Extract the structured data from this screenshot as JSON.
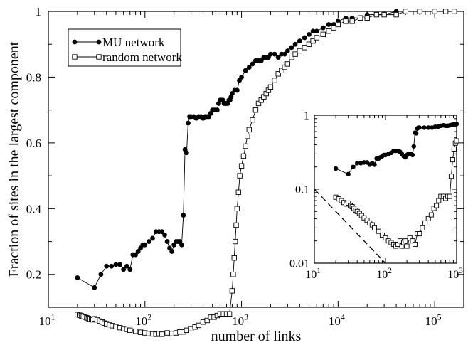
{
  "chart_data": [
    {
      "type": "scatter",
      "name_in_image": "main",
      "xlabel": "number of links",
      "ylabel": "Fraction of sites in the largest component",
      "x_scale": "log",
      "y_scale": "linear",
      "xlim": [
        10,
        200000
      ],
      "ylim": [
        0.1,
        1
      ],
      "x_ticks": [
        {
          "value": 10,
          "base": "10",
          "exp": "1"
        },
        {
          "value": 100,
          "base": "10",
          "exp": "2"
        },
        {
          "value": 1000,
          "base": "10",
          "exp": "3"
        },
        {
          "value": 10000,
          "base": "10",
          "exp": "4"
        },
        {
          "value": 100000,
          "base": "10",
          "exp": "5"
        }
      ],
      "y_ticks": [
        {
          "value": 0.2,
          "label": "0.2"
        },
        {
          "value": 0.4,
          "label": "0.4"
        },
        {
          "value": 0.6,
          "label": "0.6"
        },
        {
          "value": 0.8,
          "label": "0.8"
        },
        {
          "value": 1.0,
          "label": "1"
        }
      ],
      "legend_placement": "top-left",
      "grid": false,
      "series": [
        {
          "name": "MU network",
          "marker": "filled-circle",
          "color": "#000000",
          "x": [
            20,
            30,
            35,
            40,
            45,
            50,
            55,
            60,
            65,
            70,
            75,
            80,
            85,
            90,
            95,
            100,
            110,
            120,
            130,
            140,
            150,
            160,
            170,
            180,
            190,
            200,
            210,
            220,
            230,
            240,
            250,
            260,
            270,
            280,
            290,
            300,
            320,
            340,
            360,
            380,
            400,
            420,
            440,
            460,
            480,
            500,
            520,
            540,
            560,
            580,
            600,
            620,
            640,
            660,
            680,
            700,
            720,
            740,
            760,
            780,
            800,
            850,
            900,
            950,
            1000,
            1100,
            1200,
            1300,
            1400,
            1500,
            1600,
            1700,
            1800,
            1900,
            2000,
            2200,
            2400,
            2600,
            2800,
            3000,
            3300,
            3600,
            4000,
            4500,
            5000,
            5500,
            6000,
            7000,
            8000,
            9000,
            10000,
            12000,
            14000,
            17000,
            20000,
            25000,
            30000,
            40000,
            50000,
            70000,
            100000,
            130000,
            160000
          ],
          "y": [
            0.19,
            0.16,
            0.2,
            0.225,
            0.225,
            0.23,
            0.23,
            0.215,
            0.225,
            0.215,
            0.26,
            0.26,
            0.27,
            0.28,
            0.29,
            0.29,
            0.3,
            0.31,
            0.33,
            0.33,
            0.33,
            0.32,
            0.3,
            0.28,
            0.27,
            0.29,
            0.3,
            0.3,
            0.3,
            0.29,
            0.38,
            0.58,
            0.57,
            0.66,
            0.68,
            0.68,
            0.68,
            0.675,
            0.68,
            0.68,
            0.675,
            0.68,
            0.68,
            0.68,
            0.69,
            0.7,
            0.7,
            0.7,
            0.7,
            0.72,
            0.73,
            0.73,
            0.73,
            0.72,
            0.72,
            0.72,
            0.72,
            0.73,
            0.73,
            0.74,
            0.75,
            0.76,
            0.76,
            0.79,
            0.8,
            0.82,
            0.83,
            0.84,
            0.85,
            0.85,
            0.85,
            0.86,
            0.86,
            0.86,
            0.87,
            0.87,
            0.86,
            0.87,
            0.87,
            0.88,
            0.89,
            0.9,
            0.91,
            0.92,
            0.93,
            0.94,
            0.94,
            0.95,
            0.96,
            0.96,
            0.97,
            0.98,
            0.98,
            0.98,
            0.99,
            0.99,
            0.99,
            1.0,
            1.0,
            1.0,
            1.0,
            1.0,
            1.0
          ]
        },
        {
          "name": "random network",
          "marker": "open-square",
          "color": "#000000",
          "x": [
            20,
            21,
            22,
            23,
            24,
            25,
            26,
            27,
            28,
            29,
            30,
            32,
            34,
            36,
            38,
            40,
            43,
            46,
            50,
            55,
            60,
            65,
            70,
            80,
            90,
            100,
            110,
            120,
            130,
            140,
            150,
            170,
            190,
            210,
            230,
            250,
            270,
            300,
            330,
            360,
            400,
            440,
            480,
            520,
            560,
            600,
            650,
            700,
            750,
            800,
            820,
            840,
            860,
            880,
            900,
            930,
            960,
            1000,
            1050,
            1100,
            1150,
            1200,
            1300,
            1400,
            1500,
            1600,
            1700,
            1800,
            1900,
            2000,
            2200,
            2400,
            2600,
            2800,
            3000,
            3300,
            3600,
            4000,
            4500,
            5000,
            5500,
            6000,
            7000,
            8000,
            9000,
            10000,
            12000,
            14000,
            17000,
            20000,
            25000,
            30000,
            40000,
            50000,
            70000,
            100000,
            130000,
            160000
          ],
          "y": [
            0.078,
            0.076,
            0.074,
            0.072,
            0.07,
            0.068,
            0.066,
            0.064,
            0.063,
            0.062,
            0.065,
            0.062,
            0.058,
            0.055,
            0.052,
            0.05,
            0.047,
            0.044,
            0.041,
            0.038,
            0.035,
            0.033,
            0.03,
            0.027,
            0.024,
            0.022,
            0.02,
            0.019,
            0.018,
            0.02,
            0.018,
            0.022,
            0.02,
            0.022,
            0.025,
            0.025,
            0.03,
            0.035,
            0.04,
            0.045,
            0.055,
            0.06,
            0.07,
            0.07,
            0.075,
            0.08,
            0.08,
            0.08,
            0.08,
            0.15,
            0.2,
            0.25,
            0.3,
            0.35,
            0.4,
            0.45,
            0.5,
            0.53,
            0.56,
            0.59,
            0.62,
            0.64,
            0.67,
            0.7,
            0.72,
            0.73,
            0.74,
            0.75,
            0.76,
            0.77,
            0.79,
            0.81,
            0.82,
            0.83,
            0.84,
            0.86,
            0.87,
            0.88,
            0.89,
            0.9,
            0.91,
            0.92,
            0.93,
            0.94,
            0.95,
            0.96,
            0.97,
            0.97,
            0.98,
            0.98,
            0.99,
            0.99,
            0.99,
            1.0,
            1.0,
            1.0,
            1.0,
            1.0
          ]
        }
      ]
    },
    {
      "type": "scatter",
      "name_in_image": "inset",
      "xlabel": "",
      "ylabel": "",
      "x_scale": "log",
      "y_scale": "log",
      "xlim": [
        10,
        1000
      ],
      "ylim": [
        0.01,
        1
      ],
      "x_ticks": [
        {
          "value": 10,
          "base": "10",
          "exp": "1"
        },
        {
          "value": 100,
          "base": "10",
          "exp": "2"
        },
        {
          "value": 1000,
          "base": "10",
          "exp": "3"
        }
      ],
      "y_ticks": [
        {
          "value": 0.01,
          "label": "0.01"
        },
        {
          "value": 0.1,
          "label": "0.1"
        },
        {
          "value": 1,
          "label": "1"
        }
      ],
      "reference_line": {
        "style": "dashed",
        "x": [
          10,
          100
        ],
        "y": [
          0.1,
          0.01
        ]
      },
      "series": [
        {
          "name": "MU network",
          "marker": "filled-circle",
          "x": [
            20,
            30,
            35,
            40,
            45,
            50,
            55,
            60,
            65,
            70,
            75,
            80,
            85,
            90,
            95,
            100,
            110,
            120,
            130,
            140,
            150,
            160,
            170,
            180,
            190,
            200,
            210,
            220,
            230,
            240,
            250,
            260,
            270,
            280,
            290,
            300,
            350,
            400,
            450,
            500,
            550,
            600,
            650,
            700,
            750,
            800,
            850,
            900,
            950,
            1000
          ],
          "y": [
            0.19,
            0.16,
            0.2,
            0.225,
            0.225,
            0.23,
            0.23,
            0.215,
            0.225,
            0.215,
            0.26,
            0.26,
            0.27,
            0.28,
            0.29,
            0.29,
            0.3,
            0.31,
            0.33,
            0.33,
            0.33,
            0.32,
            0.3,
            0.28,
            0.27,
            0.29,
            0.3,
            0.3,
            0.3,
            0.29,
            0.38,
            0.58,
            0.57,
            0.66,
            0.68,
            0.68,
            0.68,
            0.68,
            0.68,
            0.7,
            0.7,
            0.72,
            0.73,
            0.72,
            0.72,
            0.73,
            0.74,
            0.75,
            0.76,
            0.76
          ]
        },
        {
          "name": "random network",
          "marker": "open-square",
          "x": [
            20,
            22,
            24,
            26,
            28,
            30,
            32,
            34,
            36,
            38,
            40,
            43,
            46,
            50,
            55,
            60,
            65,
            70,
            80,
            90,
            100,
            110,
            120,
            130,
            140,
            150,
            160,
            170,
            180,
            190,
            200,
            220,
            240,
            260,
            280,
            300,
            330,
            360,
            400,
            440,
            480,
            520,
            560,
            600,
            650,
            700,
            750,
            800,
            840,
            880,
            920,
            960,
            1000
          ],
          "y": [
            0.078,
            0.074,
            0.07,
            0.066,
            0.063,
            0.065,
            0.06,
            0.058,
            0.055,
            0.052,
            0.05,
            0.047,
            0.044,
            0.041,
            0.038,
            0.035,
            0.033,
            0.03,
            0.027,
            0.024,
            0.022,
            0.02,
            0.019,
            0.018,
            0.017,
            0.018,
            0.02,
            0.017,
            0.019,
            0.02,
            0.017,
            0.022,
            0.02,
            0.018,
            0.025,
            0.025,
            0.03,
            0.035,
            0.04,
            0.045,
            0.055,
            0.06,
            0.07,
            0.08,
            0.08,
            0.075,
            0.08,
            0.08,
            0.15,
            0.25,
            0.35,
            0.42,
            0.45
          ]
        }
      ]
    }
  ]
}
